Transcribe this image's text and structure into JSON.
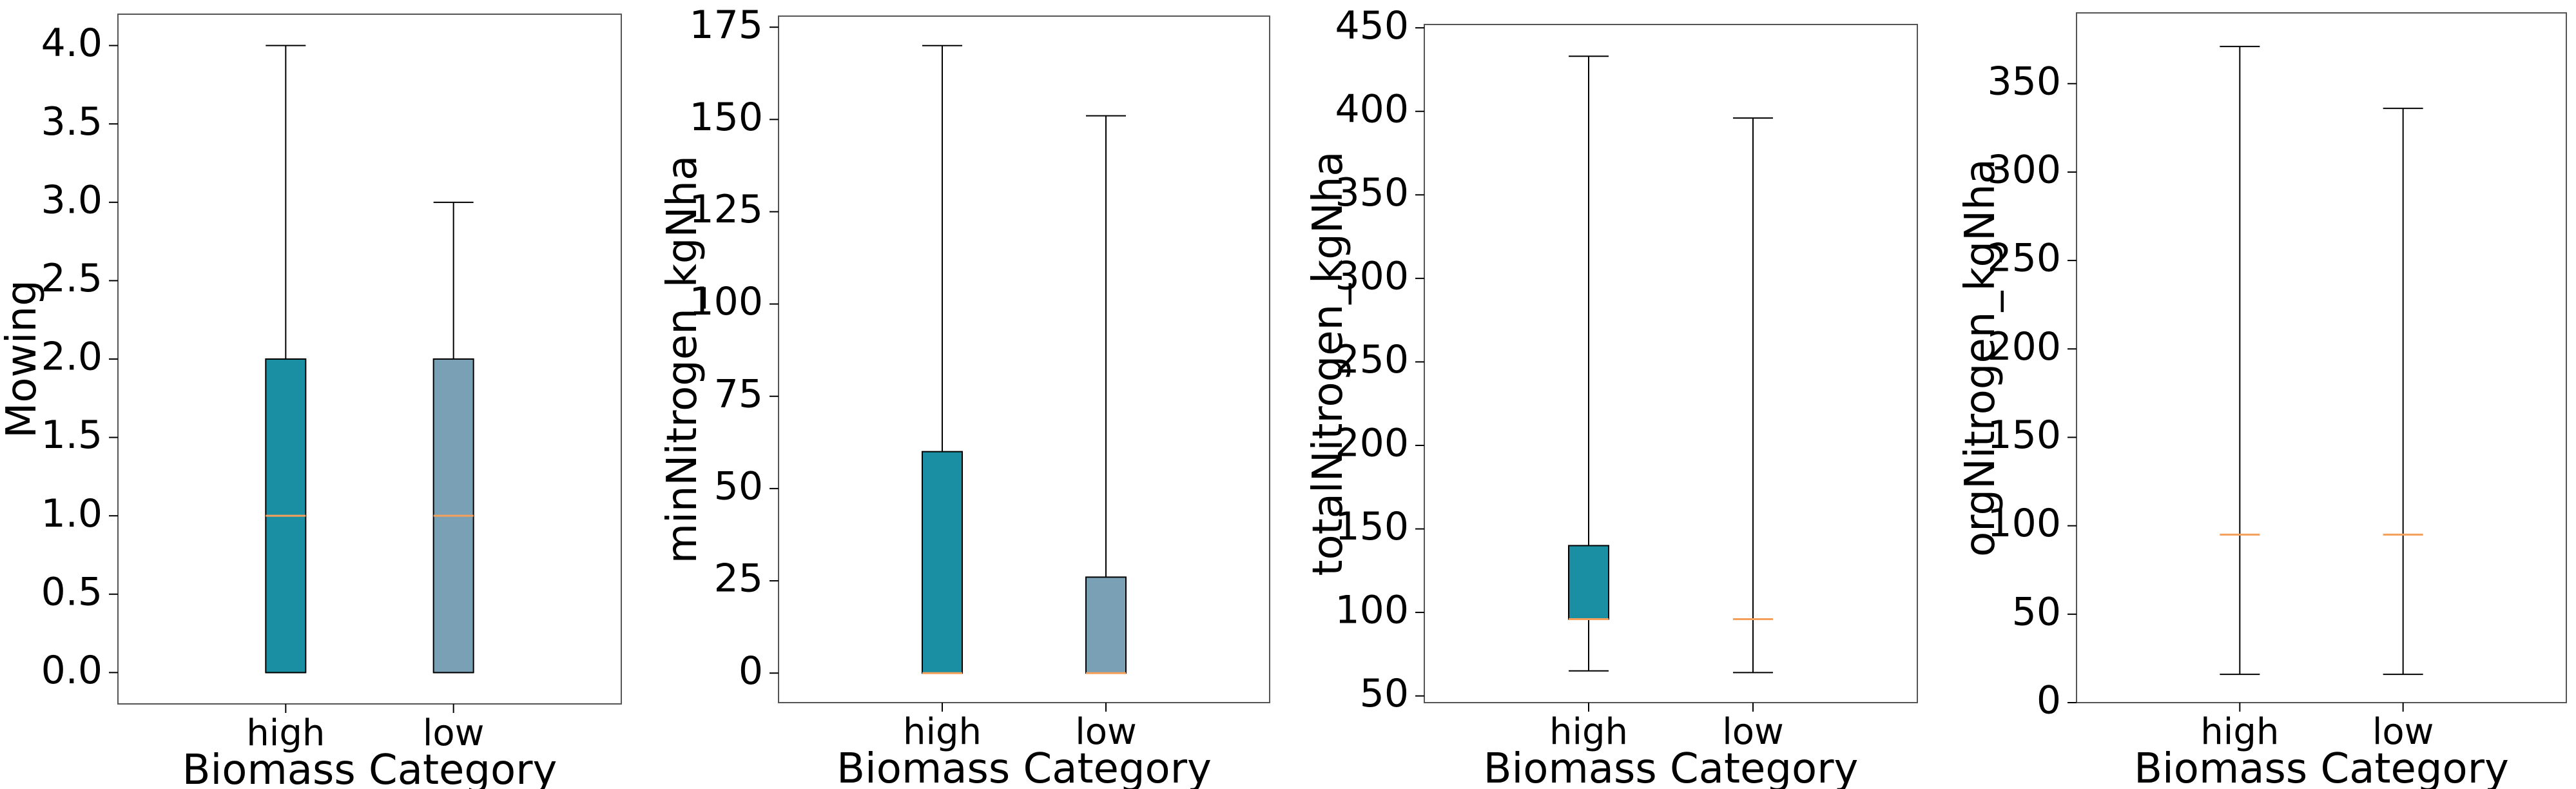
{
  "chart_data": [
    {
      "type": "box",
      "xlabel": "Biomass Category",
      "ylabel": "Mowing",
      "categories": [
        "high",
        "low"
      ],
      "colors": [
        "#1a8fa3",
        "#7aa0b5"
      ],
      "median_color": "#f5a05a",
      "ylim": [
        -0.2,
        4.2
      ],
      "yticks": [
        0.0,
        0.5,
        1.0,
        1.5,
        2.0,
        2.5,
        3.0,
        3.5,
        4.0
      ],
      "ytick_labels": [
        "0.0",
        "0.5",
        "1.0",
        "1.5",
        "2.0",
        "2.5",
        "3.0",
        "3.5",
        "4.0"
      ],
      "boxes": [
        {
          "whislo": 0,
          "q1": 0,
          "med": 1,
          "q3": 2,
          "whishi": 4
        },
        {
          "whislo": 0,
          "q1": 0,
          "med": 1,
          "q3": 2,
          "whishi": 3
        }
      ]
    },
    {
      "type": "box",
      "xlabel": "Biomass Category",
      "ylabel": "minNitrogen_kgNha",
      "categories": [
        "high",
        "low"
      ],
      "colors": [
        "#1a8fa3",
        "#7aa0b5"
      ],
      "median_color": "#f5a05a",
      "ylim": [
        -8,
        178
      ],
      "yticks": [
        0,
        25,
        50,
        75,
        100,
        125,
        150,
        175
      ],
      "ytick_labels": [
        "0",
        "25",
        "50",
        "75",
        "100",
        "125",
        "150",
        "175"
      ],
      "boxes": [
        {
          "whislo": 0,
          "q1": 0,
          "med": 0,
          "q3": 60,
          "whishi": 170
        },
        {
          "whislo": 0,
          "q1": 0,
          "med": 0,
          "q3": 26,
          "whishi": 151
        }
      ]
    },
    {
      "type": "box",
      "xlabel": "Biomass Category",
      "ylabel": "totalNitrogen_kgNha",
      "categories": [
        "high",
        "low"
      ],
      "colors": [
        "#1a8fa3",
        "#7aa0b5"
      ],
      "median_color": "#f5a05a",
      "ylim": [
        46,
        452
      ],
      "yticks": [
        50,
        100,
        150,
        200,
        250,
        300,
        350,
        400,
        450
      ],
      "ytick_labels": [
        "50",
        "100",
        "150",
        "200",
        "250",
        "300",
        "350",
        "400",
        "450"
      ],
      "boxes": [
        {
          "whislo": 65,
          "q1": 96,
          "med": 96,
          "q3": 140,
          "whishi": 433
        },
        {
          "whislo": 64,
          "q1": 96,
          "med": 96,
          "q3": 96,
          "whishi": 396
        }
      ]
    },
    {
      "type": "box",
      "xlabel": "Biomass Category",
      "ylabel": "orgNitrogen_kgNha",
      "categories": [
        "high",
        "low"
      ],
      "colors": [
        "#1a8fa3",
        "#7aa0b5"
      ],
      "median_color": "#f5a05a",
      "ylim": [
        0,
        390
      ],
      "yticks": [
        0,
        50,
        100,
        150,
        200,
        250,
        300,
        350
      ],
      "ytick_labels": [
        "0",
        "50",
        "100",
        "150",
        "200",
        "250",
        "300",
        "350"
      ],
      "boxes": [
        {
          "whislo": 16,
          "q1": 95,
          "med": 95,
          "q3": 95,
          "whishi": 371
        },
        {
          "whislo": 16,
          "q1": 95,
          "med": 95,
          "q3": 95,
          "whishi": 336
        }
      ]
    }
  ]
}
